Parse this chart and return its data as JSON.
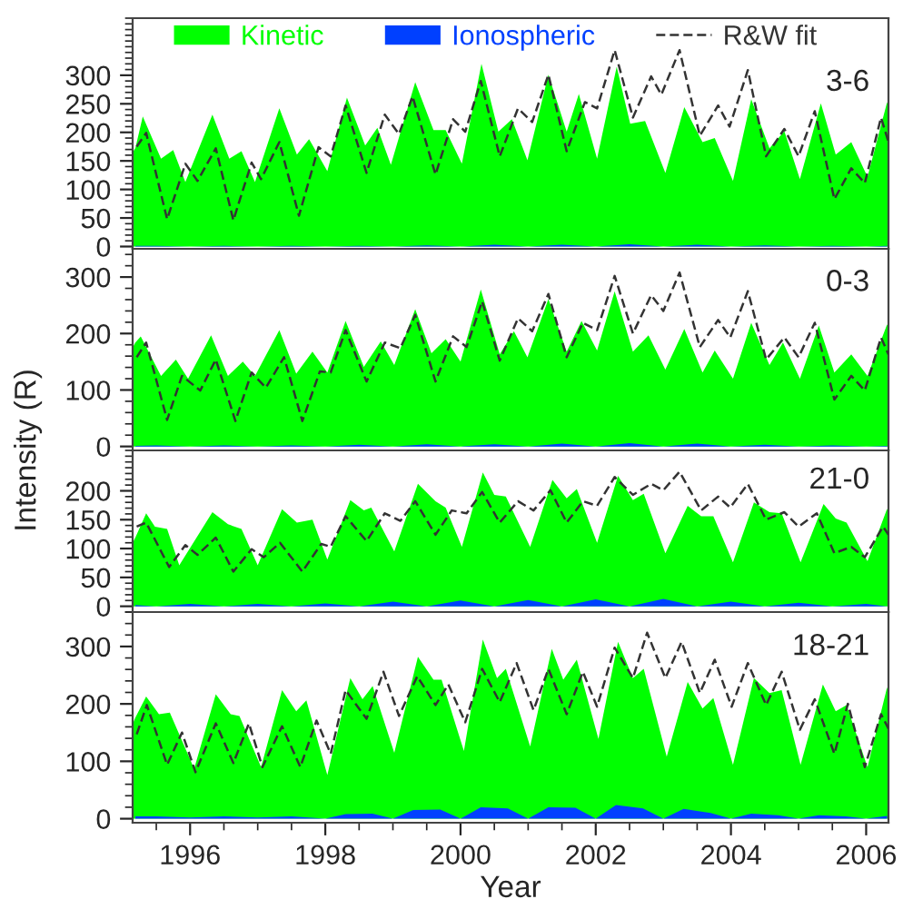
{
  "chart_data": [
    {
      "type": "area",
      "xlim": [
        1995.15,
        2006.33
      ],
      "xticks": [
        1996,
        1998,
        2000,
        2002,
        2004,
        2006
      ],
      "ylim": [
        -4,
        400
      ],
      "yticks": [
        0,
        50,
        100,
        150,
        200,
        250,
        300
      ],
      "tick_labels": "y",
      "grid": false,
      "legend": "top",
      "annotations": [
        "3-6"
      ],
      "series": [
        {
          "name": "Kinetic",
          "color": "#00ff00",
          "x": [
            1995.15,
            1995.19,
            1995.3,
            1995.57,
            1995.75,
            1995.93,
            1996.33,
            1996.58,
            1996.76,
            1996.96,
            1997.32,
            1997.58,
            1997.76,
            1998.03,
            1998.32,
            1998.59,
            1998.77,
            1998.97,
            1999.33,
            1999.6,
            1999.78,
            2000.02,
            2000.31,
            2000.56,
            2000.76,
            2000.99,
            2001.3,
            2001.57,
            2001.75,
            2002.02,
            2002.31,
            2002.51,
            2002.73,
            2003.03,
            2003.31,
            2003.58,
            2003.76,
            2004.03,
            2004.3,
            2004.57,
            2004.79,
            2005.02,
            2005.33,
            2005.55,
            2005.78,
            2006.02,
            2006.31,
            2006.33
          ],
          "values": [
            165,
            172,
            228,
            154,
            169,
            113,
            231,
            154,
            167,
            113,
            242,
            161,
            188,
            132,
            261,
            177,
            208,
            143,
            288,
            204,
            204,
            145,
            320,
            201,
            223,
            151,
            301,
            201,
            267,
            154,
            315,
            215,
            220,
            129,
            244,
            183,
            190,
            115,
            258,
            172,
            202,
            118,
            251,
            161,
            183,
            122,
            253,
            245
          ]
        },
        {
          "name": "Ionospheric",
          "color": "#0040ff",
          "x": [
            1995.19,
            1995.5,
            1996.0,
            1996.5,
            1997.0,
            1997.5,
            1998.0,
            1998.5,
            1999.0,
            1999.5,
            2000.0,
            2000.5,
            2001.0,
            2001.5,
            2002.0,
            2002.5,
            2003.0,
            2003.5,
            2004.0,
            2004.5,
            2005.0,
            2005.5,
            2006.0,
            2006.31
          ],
          "values": [
            1,
            1,
            0,
            1,
            0,
            1,
            0,
            1,
            0,
            2,
            0,
            3,
            0,
            3,
            0,
            4,
            0,
            3,
            0,
            2,
            0,
            1,
            0,
            1
          ]
        },
        {
          "name": "R&W fit",
          "type": "line",
          "line_style": "dashed",
          "color": "#333333",
          "x": [
            1995.21,
            1995.35,
            1995.66,
            1995.93,
            1996.11,
            1996.38,
            1996.64,
            1996.91,
            1997.05,
            1997.32,
            1997.61,
            1997.9,
            1998.08,
            1998.3,
            1998.61,
            1998.88,
            1999.09,
            1999.29,
            1999.63,
            1999.89,
            2000.07,
            2000.3,
            2000.58,
            2000.85,
            2001.06,
            2001.3,
            2001.57,
            2001.84,
            2002.02,
            2002.28,
            2002.55,
            2002.82,
            2002.97,
            2003.24,
            2003.54,
            2003.81,
            2003.98,
            2004.25,
            2004.52,
            2004.79,
            2005.0,
            2005.24,
            2005.53,
            2005.78,
            2005.98,
            2006.22,
            2006.33
          ],
          "values": [
            175,
            199,
            48,
            145,
            115,
            172,
            46,
            147,
            118,
            183,
            54,
            174,
            158,
            247,
            129,
            231,
            197,
            263,
            126,
            223,
            201,
            290,
            158,
            242,
            218,
            301,
            167,
            253,
            242,
            344,
            226,
            298,
            266,
            344,
            194,
            247,
            210,
            309,
            158,
            206,
            158,
            237,
            83,
            137,
            111,
            226,
            183
          ]
        }
      ]
    },
    {
      "type": "area",
      "xlim": [
        1995.15,
        2006.33
      ],
      "xticks": [
        1996,
        1998,
        2000,
        2002,
        2004,
        2006
      ],
      "ylim": [
        -7,
        350
      ],
      "yticks": [
        0,
        100,
        200,
        300
      ],
      "tick_labels": "y",
      "grid": false,
      "ylabel": "Intensity (R)",
      "annotations": [
        "0-3"
      ],
      "series": [
        {
          "color": "#00ff00",
          "x": [
            1995.15,
            1995.19,
            1995.27,
            1995.57,
            1995.79,
            1995.97,
            1996.31,
            1996.56,
            1996.78,
            1996.96,
            1997.32,
            1997.57,
            1997.81,
            1998.03,
            1998.3,
            1998.57,
            1998.82,
            1999.02,
            1999.33,
            1999.57,
            1999.78,
            2000.0,
            2000.3,
            2000.58,
            2000.79,
            2000.99,
            2001.3,
            2001.57,
            2001.79,
            2002.02,
            2002.28,
            2002.55,
            2002.78,
            2003.03,
            2003.31,
            2003.58,
            2003.76,
            2004.03,
            2004.3,
            2004.57,
            2004.77,
            2005.02,
            2005.3,
            2005.53,
            2005.78,
            2006.02,
            2006.31,
            2006.33
          ],
          "values": [
            175,
            184,
            195,
            125,
            154,
            120,
            197,
            125,
            150,
            125,
            206,
            129,
            168,
            131,
            222,
            141,
            186,
            144,
            243,
            165,
            190,
            150,
            278,
            163,
            204,
            158,
            261,
            168,
            222,
            170,
            275,
            168,
            197,
            136,
            208,
            131,
            170,
            120,
            219,
            144,
            184,
            120,
            214,
            131,
            163,
            125,
            216,
            210
          ]
        },
        {
          "color": "#0040ff",
          "x": [
            1995.19,
            1995.5,
            1996.0,
            1996.5,
            1997.0,
            1997.5,
            1998.0,
            1998.5,
            1999.0,
            1999.5,
            2000.0,
            2000.5,
            2001.0,
            2001.5,
            2002.0,
            2002.5,
            2003.0,
            2003.5,
            2004.0,
            2004.5,
            2005.0,
            2005.5,
            2006.0,
            2006.31
          ],
          "values": [
            1,
            2,
            0,
            2,
            0,
            2,
            0,
            3,
            0,
            4,
            0,
            4,
            0,
            5,
            0,
            6,
            0,
            5,
            0,
            3,
            0,
            2,
            0,
            1
          ]
        },
        {
          "type": "line",
          "line_style": "dashed",
          "color": "#333333",
          "x": [
            1995.21,
            1995.35,
            1995.66,
            1995.88,
            1996.15,
            1996.38,
            1996.67,
            1996.91,
            1997.12,
            1997.39,
            1997.66,
            1997.92,
            1998.08,
            1998.3,
            1998.61,
            1998.88,
            1999.11,
            1999.33,
            1999.63,
            1999.89,
            2000.09,
            2000.32,
            2000.58,
            2000.85,
            2001.06,
            2001.3,
            2001.57,
            2001.81,
            2002.02,
            2002.28,
            2002.55,
            2002.82,
            2003.0,
            2003.24,
            2003.54,
            2003.81,
            2003.99,
            2004.25,
            2004.52,
            2004.79,
            2005.0,
            2005.24,
            2005.53,
            2005.78,
            2005.98,
            2006.22,
            2006.33
          ],
          "values": [
            158,
            184,
            47,
            125,
            99,
            154,
            45,
            131,
            104,
            158,
            45,
            133,
            131,
            206,
            115,
            184,
            174,
            233,
            115,
            195,
            176,
            257,
            152,
            227,
            204,
            270,
            158,
            219,
            206,
            302,
            200,
            268,
            240,
            308,
            176,
            224,
            193,
            275,
            154,
            193,
            158,
            219,
            83,
            125,
            99,
            193,
            163
          ]
        }
      ]
    },
    {
      "type": "area",
      "xlim": [
        1995.15,
        2006.33
      ],
      "xticks": [
        1996,
        1998,
        2000,
        2002,
        2004,
        2006
      ],
      "ylim": [
        -10,
        270
      ],
      "yticks": [
        0,
        50,
        100,
        150,
        200
      ],
      "tick_labels": "y",
      "grid": false,
      "annotations": [
        "21-0"
      ],
      "series": [
        {
          "color": "#00ff00",
          "x": [
            1995.15,
            1995.19,
            1995.35,
            1995.48,
            1995.66,
            1995.84,
            1996.33,
            1996.56,
            1996.76,
            1997.0,
            1997.36,
            1997.58,
            1997.81,
            1998.03,
            1998.37,
            1998.57,
            1998.68,
            1999.02,
            1999.37,
            1999.63,
            1999.78,
            2000.02,
            2000.33,
            2000.5,
            2000.67,
            2001.03,
            2001.36,
            2001.57,
            2001.72,
            2002.02,
            2002.33,
            2002.55,
            2002.71,
            2003.03,
            2003.36,
            2003.56,
            2003.74,
            2004.03,
            2004.34,
            2004.57,
            2004.75,
            2005.03,
            2005.37,
            2005.55,
            2005.71,
            2006.02,
            2006.31,
            2006.33
          ],
          "values": [
            110,
            119,
            161,
            138,
            134,
            71,
            163,
            142,
            134,
            71,
            168,
            145,
            150,
            81,
            184,
            166,
            171,
            95,
            212,
            182,
            171,
            103,
            232,
            193,
            190,
            103,
            219,
            187,
            203,
            110,
            226,
            184,
            195,
            92,
            174,
            156,
            156,
            76,
            180,
            163,
            161,
            76,
            177,
            152,
            145,
            78,
            169,
            160
          ]
        },
        {
          "color": "#0040ff",
          "x": [
            1995.19,
            1995.5,
            1996.0,
            1996.5,
            1997.0,
            1997.5,
            1998.0,
            1998.5,
            1999.0,
            1999.5,
            2000.0,
            2000.5,
            2001.0,
            2001.5,
            2002.0,
            2002.5,
            2003.0,
            2003.5,
            2004.0,
            2004.5,
            2005.0,
            2005.5,
            2006.0,
            2006.31
          ],
          "values": [
            2,
            0,
            4,
            0,
            4,
            0,
            5,
            0,
            8,
            0,
            10,
            0,
            11,
            0,
            12,
            0,
            13,
            0,
            8,
            0,
            6,
            0,
            4,
            0
          ]
        },
        {
          "type": "line",
          "line_style": "dashed",
          "color": "#333333",
          "x": [
            1995.21,
            1995.35,
            1995.69,
            1995.93,
            1996.11,
            1996.38,
            1996.64,
            1996.91,
            1997.09,
            1997.33,
            1997.66,
            1997.94,
            1998.08,
            1998.3,
            1998.61,
            1998.88,
            1999.11,
            1999.33,
            1999.63,
            1999.87,
            2000.09,
            2000.32,
            2000.58,
            2000.85,
            2001.08,
            2001.33,
            2001.57,
            2001.81,
            2002.02,
            2002.28,
            2002.55,
            2002.82,
            2003.0,
            2003.24,
            2003.56,
            2003.81,
            2003.99,
            2004.25,
            2004.52,
            2004.79,
            2005.0,
            2005.27,
            2005.53,
            2005.78,
            2005.98,
            2006.25,
            2006.33
          ],
          "values": [
            138,
            145,
            68,
            106,
            89,
            119,
            60,
            99,
            85,
            110,
            60,
            108,
            103,
            156,
            113,
            161,
            148,
            182,
            124,
            166,
            161,
            198,
            145,
            182,
            166,
            201,
            145,
            182,
            174,
            224,
            193,
            212,
            201,
            233,
            166,
            190,
            171,
            212,
            150,
            163,
            138,
            161,
            92,
            103,
            85,
            138,
            124
          ]
        }
      ]
    },
    {
      "type": "area",
      "xlim": [
        1995.15,
        2006.33
      ],
      "xticks": [
        1996,
        1998,
        2000,
        2002,
        2004,
        2006
      ],
      "ylim": [
        -7,
        360
      ],
      "yticks": [
        0,
        100,
        200,
        300
      ],
      "grid": false,
      "xlabel": "Year",
      "annotations": [
        "18-21"
      ],
      "series": [
        {
          "color": "#00ff00",
          "x": [
            1995.15,
            1995.19,
            1995.35,
            1995.54,
            1995.7,
            1996.06,
            1996.38,
            1996.6,
            1996.73,
            1997.05,
            1997.36,
            1997.57,
            1997.72,
            1998.03,
            1998.37,
            1998.55,
            1998.7,
            1999.02,
            1999.37,
            1999.6,
            1999.72,
            2000.05,
            2000.33,
            2000.54,
            2000.67,
            2001.03,
            2001.35,
            2001.52,
            2001.72,
            2002.04,
            2002.33,
            2002.55,
            2002.71,
            2003.05,
            2003.36,
            2003.58,
            2003.74,
            2004.03,
            2004.34,
            2004.57,
            2004.75,
            2005.03,
            2005.36,
            2005.55,
            2005.71,
            2006.02,
            2006.31,
            2006.33
          ],
          "values": [
            165,
            176,
            213,
            182,
            185,
            87,
            217,
            182,
            179,
            90,
            224,
            187,
            206,
            76,
            245,
            208,
            231,
            115,
            282,
            242,
            242,
            118,
            312,
            245,
            261,
            126,
            296,
            242,
            277,
            139,
            308,
            245,
            261,
            108,
            238,
            192,
            210,
            94,
            245,
            219,
            224,
            94,
            234,
            187,
            198,
            90,
            229,
            215
          ]
        },
        {
          "color": "#0040ff",
          "x": [
            1995.19,
            1995.5,
            1996.0,
            1996.5,
            1997.0,
            1997.5,
            1998.0,
            1998.3,
            1998.7,
            1999.0,
            1999.3,
            1999.7,
            2000.0,
            2000.3,
            2000.7,
            2001.0,
            2001.3,
            2001.7,
            2002.0,
            2002.3,
            2002.7,
            2003.0,
            2003.3,
            2003.7,
            2004.0,
            2004.3,
            2004.7,
            2005.0,
            2005.3,
            2005.7,
            2006.0,
            2006.31
          ],
          "values": [
            4,
            4,
            2,
            4,
            2,
            4,
            0,
            8,
            9,
            0,
            15,
            16,
            0,
            20,
            18,
            0,
            20,
            19,
            0,
            24,
            18,
            0,
            17,
            10,
            0,
            9,
            6,
            0,
            6,
            4,
            0,
            5
          ]
        },
        {
          "type": "line",
          "line_style": "dashed",
          "color": "#333333",
          "x": [
            1995.21,
            1995.36,
            1995.66,
            1995.88,
            1996.08,
            1996.38,
            1996.64,
            1996.87,
            1997.07,
            1997.36,
            1997.63,
            1997.87,
            1998.08,
            1998.3,
            1998.61,
            1998.86,
            1999.09,
            1999.36,
            1999.63,
            1999.82,
            2000.07,
            2000.32,
            2000.58,
            2000.83,
            2001.08,
            2001.3,
            2001.57,
            2001.81,
            2002.02,
            2002.28,
            2002.55,
            2002.76,
            2003.03,
            2003.27,
            2003.54,
            2003.76,
            2004.01,
            2004.25,
            2004.52,
            2004.75,
            2005.02,
            2005.24,
            2005.53,
            2005.73,
            2005.98,
            2006.22,
            2006.33
          ],
          "values": [
            147,
            198,
            94,
            150,
            81,
            166,
            97,
            166,
            90,
            161,
            90,
            171,
            113,
            224,
            174,
            256,
            179,
            248,
            198,
            234,
            168,
            261,
            203,
            271,
            189,
            261,
            182,
            256,
            195,
            298,
            245,
            324,
            245,
            308,
            219,
            277,
            195,
            271,
            198,
            256,
            155,
            208,
            113,
            200,
            90,
            182,
            157
          ]
        }
      ]
    }
  ]
}
